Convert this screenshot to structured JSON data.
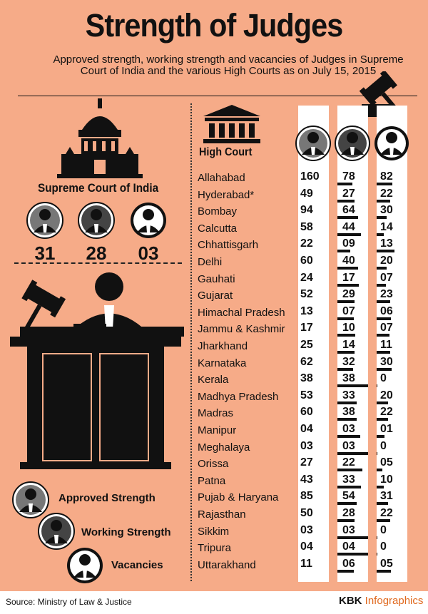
{
  "title": "Strength of Judges",
  "subtitle": "Approved strength, working strength and vacancies of Judges in Supreme Court of India and the various High Courts as on July 15, 2015",
  "supreme_court": {
    "label": "Supreme Court of India",
    "approved": "31",
    "working": "28",
    "vacancies": "03"
  },
  "high_court_label": "High Court",
  "legend": {
    "approved": "Approved Strength",
    "working": "Working Strength",
    "vacancies": "Vacancies"
  },
  "table": [
    {
      "name": "Allahabad",
      "approved": "160",
      "working": "78",
      "vacancies": "82"
    },
    {
      "name": "Hyderabad*",
      "approved": "49",
      "working": "27",
      "vacancies": "22"
    },
    {
      "name": "Bombay",
      "approved": "94",
      "working": "64",
      "vacancies": "30"
    },
    {
      "name": "Calcutta",
      "approved": "58",
      "working": "44",
      "vacancies": "14"
    },
    {
      "name": "Chhattisgarh",
      "approved": "22",
      "working": "09",
      "vacancies": "13"
    },
    {
      "name": "Delhi",
      "approved": "60",
      "working": "40",
      "vacancies": "20"
    },
    {
      "name": "Gauhati",
      "approved": "24",
      "working": "17",
      "vacancies": "07"
    },
    {
      "name": "Gujarat",
      "approved": "52",
      "working": "29",
      "vacancies": "23"
    },
    {
      "name": "Himachal Pradesh",
      "approved": "13",
      "working": "07",
      "vacancies": "06"
    },
    {
      "name": "Jammu & Kashmir",
      "approved": "17",
      "working": "10",
      "vacancies": "07"
    },
    {
      "name": "Jharkhand",
      "approved": "25",
      "working": "14",
      "vacancies": "11"
    },
    {
      "name": "Karnataka",
      "approved": "62",
      "working": "32",
      "vacancies": "30"
    },
    {
      "name": "Kerala",
      "approved": "38",
      "working": "38",
      "vacancies": "0"
    },
    {
      "name": "Madhya Pradesh",
      "approved": "53",
      "working": "33",
      "vacancies": "20"
    },
    {
      "name": "Madras",
      "approved": "60",
      "working": "38",
      "vacancies": "22"
    },
    {
      "name": "Manipur",
      "approved": "04",
      "working": "03",
      "vacancies": "01"
    },
    {
      "name": "Meghalaya",
      "approved": "03",
      "working": "03",
      "vacancies": "0"
    },
    {
      "name": "Orissa",
      "approved": "27",
      "working": "22",
      "vacancies": "05"
    },
    {
      "name": "Patna",
      "approved": "43",
      "working": "33",
      "vacancies": "10"
    },
    {
      "name": "Pujab & Haryana",
      "approved": "85",
      "working": "54",
      "vacancies": "31"
    },
    {
      "name": "Rajasthan",
      "approved": "50",
      "working": "28",
      "vacancies": "22"
    },
    {
      "name": "Sikkim",
      "approved": "03",
      "working": "03",
      "vacancies": "0"
    },
    {
      "name": "Tripura",
      "approved": "04",
      "working": "04",
      "vacancies": "0"
    },
    {
      "name": "Uttarakhand",
      "approved": "11",
      "working": "06",
      "vacancies": "05"
    }
  ],
  "source": "Source: Ministry of Law & Justice",
  "brand": {
    "part1": "KBK",
    "part2": "Infographics"
  },
  "colors": {
    "background": "#f6ab88",
    "accent": "#e0691e",
    "approved_icon": "#777777",
    "working_icon": "#444444",
    "vacancies_icon": "#ffffff"
  }
}
